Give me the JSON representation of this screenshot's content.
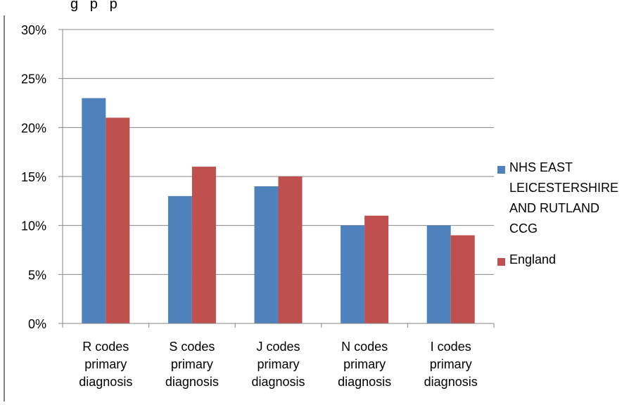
{
  "chart_data": {
    "type": "bar",
    "title_fragment": "g   p   p",
    "categories": [
      [
        "R codes",
        "primary",
        "diagnosis"
      ],
      [
        "S codes",
        "primary",
        "diagnosis"
      ],
      [
        "J codes",
        "primary",
        "diagnosis"
      ],
      [
        "N codes",
        "primary",
        "diagnosis"
      ],
      [
        "I codes",
        "primary",
        "diagnosis"
      ]
    ],
    "series": [
      {
        "name": "NHS EAST LEICESTERSHIRE AND RUTLAND CCG",
        "legend_lines": [
          "NHS EAST",
          "LEICESTERSHIRE",
          "AND RUTLAND",
          "CCG"
        ],
        "color": "#4f81bd",
        "values": [
          23,
          13,
          14,
          10,
          10
        ]
      },
      {
        "name": "England",
        "legend_lines": [
          "England"
        ],
        "color": "#c0504d",
        "values": [
          21,
          16,
          15,
          11,
          9
        ]
      }
    ],
    "ylim": [
      0,
      30
    ],
    "yticks": [
      "0%",
      "5%",
      "10%",
      "15%",
      "20%",
      "25%",
      "30%"
    ],
    "grid": true,
    "legend_position": "right"
  }
}
